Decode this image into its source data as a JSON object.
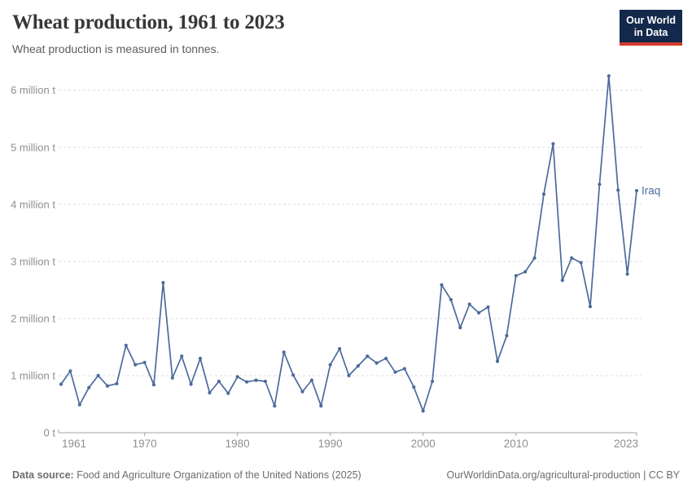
{
  "header": {
    "title": "Wheat production, 1961 to 2023",
    "subtitle": "Wheat production is measured in tonnes.",
    "logo": {
      "line1": "Our World",
      "line2": "in Data",
      "bg_color": "#13294b",
      "accent_color": "#d43b2d"
    }
  },
  "chart_data": {
    "type": "line",
    "title": "Wheat production, 1961 to 2023",
    "subtitle": "Wheat production is measured in tonnes.",
    "entity": "Iraq",
    "unit": "tonnes",
    "line_color": "#4c6a9c",
    "grid": true,
    "legend_position": "end-of-line-label",
    "ylim": [
      0,
      6300000
    ],
    "x_ticks": [
      1961,
      1970,
      1980,
      1990,
      2000,
      2010,
      2023
    ],
    "y_ticks": [
      {
        "value": 0,
        "label": "0 t"
      },
      {
        "value": 1000000,
        "label": "1 million t"
      },
      {
        "value": 2000000,
        "label": "2 million t"
      },
      {
        "value": 3000000,
        "label": "3 million t"
      },
      {
        "value": 4000000,
        "label": "4 million t"
      },
      {
        "value": 5000000,
        "label": "5 million t"
      },
      {
        "value": 6000000,
        "label": "6 million t"
      }
    ],
    "x": [
      1961,
      1962,
      1963,
      1964,
      1965,
      1966,
      1967,
      1968,
      1969,
      1970,
      1971,
      1972,
      1973,
      1974,
      1975,
      1976,
      1977,
      1978,
      1979,
      1980,
      1981,
      1982,
      1983,
      1984,
      1985,
      1986,
      1987,
      1988,
      1989,
      1990,
      1991,
      1992,
      1993,
      1994,
      1995,
      1996,
      1997,
      1998,
      1999,
      2000,
      2001,
      2002,
      2003,
      2004,
      2005,
      2006,
      2007,
      2008,
      2009,
      2010,
      2011,
      2012,
      2013,
      2014,
      2015,
      2016,
      2017,
      2018,
      2019,
      2020,
      2021,
      2022,
      2023
    ],
    "values": [
      850000,
      1080000,
      490000,
      790000,
      1000000,
      820000,
      860000,
      1530000,
      1190000,
      1230000,
      840000,
      2630000,
      960000,
      1340000,
      850000,
      1300000,
      700000,
      900000,
      690000,
      980000,
      890000,
      920000,
      900000,
      470000,
      1410000,
      1010000,
      720000,
      920000,
      470000,
      1190000,
      1470000,
      1000000,
      1170000,
      1340000,
      1220000,
      1300000,
      1060000,
      1120000,
      800000,
      380000,
      900000,
      2590000,
      2330000,
      1840000,
      2250000,
      2100000,
      2200000,
      1250000,
      1700000,
      2750000,
      2820000,
      3060000,
      4180000,
      5060000,
      2670000,
      3060000,
      2980000,
      2210000,
      4350000,
      6250000,
      4250000,
      2780000,
      4240000
    ]
  },
  "footer": {
    "source_label": "Data source:",
    "source_text": " Food and Agriculture Organization of the United Nations (2025)",
    "credit": "OurWorldinData.org/agricultural-production | CC BY"
  }
}
